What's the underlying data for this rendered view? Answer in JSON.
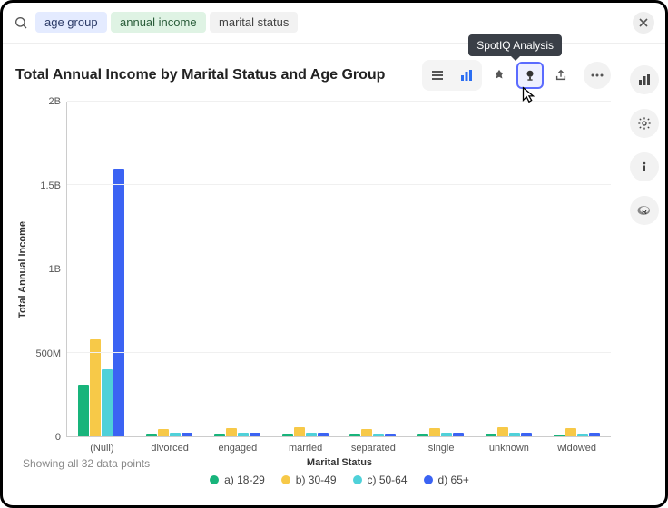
{
  "search": {
    "pills": [
      {
        "label": "age group",
        "style": "blue"
      },
      {
        "label": "annual income",
        "style": "green"
      },
      {
        "label": "marital status",
        "style": "plain"
      }
    ]
  },
  "tooltip": "SpotIQ Analysis",
  "chart": {
    "title": "Total Annual Income by Marital Status and Age Group",
    "type": "bar-grouped",
    "y_label": "Total Annual Income",
    "x_label": "Marital Status",
    "y_max": 2000000000,
    "y_ticks": [
      {
        "v": 0,
        "label": "0"
      },
      {
        "v": 500000000,
        "label": "500M"
      },
      {
        "v": 1000000000,
        "label": "1B"
      },
      {
        "v": 1500000000,
        "label": "1.5B"
      },
      {
        "v": 2000000000,
        "label": "2B"
      }
    ],
    "categories": [
      "(Null)",
      "divorced",
      "engaged",
      "married",
      "separated",
      "single",
      "unknown",
      "widowed"
    ],
    "series": [
      {
        "name": "a) 18-29",
        "color": "#18b47b"
      },
      {
        "name": "b) 30-49",
        "color": "#f7c948"
      },
      {
        "name": "c) 50-64",
        "color": "#4fd1d9"
      },
      {
        "name": "d) 65+",
        "color": "#3b63f3"
      }
    ],
    "data": [
      [
        310000000,
        580000000,
        400000000,
        1600000000
      ],
      [
        15000000,
        45000000,
        20000000,
        22000000
      ],
      [
        15000000,
        50000000,
        22000000,
        20000000
      ],
      [
        15000000,
        55000000,
        22000000,
        22000000
      ],
      [
        15000000,
        45000000,
        18000000,
        18000000
      ],
      [
        15000000,
        48000000,
        20000000,
        20000000
      ],
      [
        15000000,
        55000000,
        22000000,
        22000000
      ],
      [
        12000000,
        50000000,
        18000000,
        22000000
      ]
    ],
    "background": "#ffffff",
    "grid_color": "#f0f0f0"
  },
  "footer": {
    "datapoints": "Showing all 32 data points"
  }
}
